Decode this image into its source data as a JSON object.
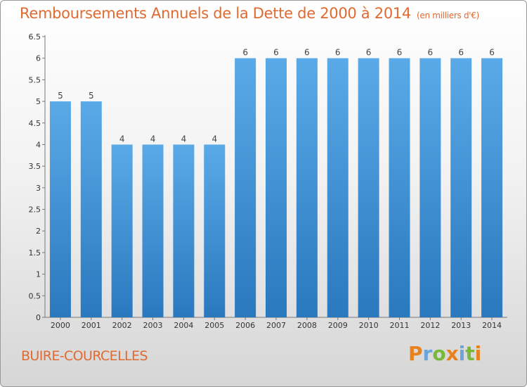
{
  "header": {
    "title": "Remboursements Annuels de la Dette de 2000 à 2014",
    "unit": "(en milliers d'€)"
  },
  "footer": {
    "city": "BUIRE-COURCELLES",
    "logo": [
      "P",
      "r",
      "o",
      "x",
      "i",
      "t",
      "i"
    ],
    "logo_colors": [
      "#e8821e",
      "#6aa4d8",
      "#79b93a",
      "#e8821e",
      "#6aa4d8",
      "#79b93a",
      "#e8821e"
    ]
  },
  "chart_data": {
    "type": "bar",
    "title": "Remboursements Annuels de la Dette de 2000 à 2014",
    "categories": [
      "2000",
      "2001",
      "2002",
      "2003",
      "2004",
      "2005",
      "2006",
      "2007",
      "2008",
      "2009",
      "2010",
      "2011",
      "2012",
      "2013",
      "2014"
    ],
    "values": [
      5,
      5,
      4,
      4,
      4,
      4,
      6,
      6,
      6,
      6,
      6,
      6,
      6,
      6,
      6
    ],
    "data_labels": [
      "5",
      "5",
      "4",
      "4",
      "4",
      "4",
      "6",
      "6",
      "6",
      "6",
      "6",
      "6",
      "6",
      "6",
      "6"
    ],
    "y_ticks": [
      "0",
      "0.5",
      "1",
      "1.5",
      "2",
      "2.5",
      "3",
      "3.5",
      "4",
      "4.5",
      "5",
      "5.5",
      "6",
      "6.5"
    ],
    "ylim": [
      0,
      6.5
    ],
    "grid": false,
    "bar_color": "#3b8fd4"
  }
}
